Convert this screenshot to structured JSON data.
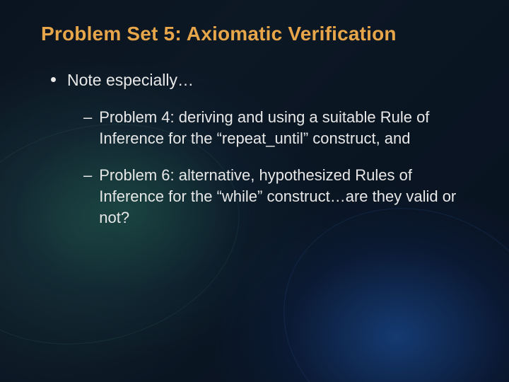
{
  "slide": {
    "title": "Problem Set 5: Axiomatic Verification",
    "title_color": "#e8a64a",
    "title_fontsize": 28,
    "body_color": "#e8e8e8",
    "body_fontsize_l1": 23,
    "body_fontsize_l2": 22,
    "background_gradient": {
      "base": [
        "#0a1420",
        "#0d1825",
        "#0a1522",
        "#081220"
      ],
      "glow_left": "rgba(40,120,100,0.35)",
      "glow_right": "rgba(30,90,180,0.55)"
    },
    "bullets": [
      {
        "level": 1,
        "marker": "•",
        "text": "Note especially…"
      },
      {
        "level": 2,
        "marker": "–",
        "text": "Problem 4: deriving and using a suitable Rule of Inference for the “repeat_until” construct, and"
      },
      {
        "level": 2,
        "marker": "–",
        "text": "Problem 6: alternative, hypothesized Rules of Inference for the “while” construct…are they valid or not?"
      }
    ]
  }
}
